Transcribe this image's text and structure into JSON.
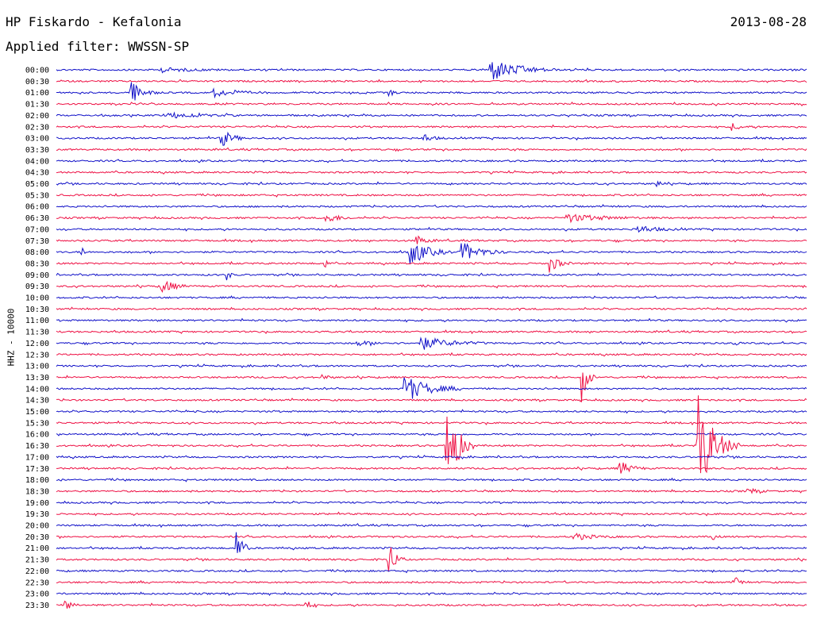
{
  "header": {
    "station": "HP Fiskardo - Kefalonia",
    "date": "2013-08-28",
    "filter": "Applied filter: WWSSN-SP"
  },
  "axis_label": "HHZ - 10000",
  "colors": {
    "even_trace": "#1010c8",
    "odd_trace": "#ee1044"
  },
  "chart_data": {
    "type": "line",
    "trace_labels": [
      "00:00",
      "00:30",
      "01:00",
      "01:30",
      "02:00",
      "02:30",
      "03:00",
      "03:30",
      "04:00",
      "04:30",
      "05:00",
      "05:30",
      "06:00",
      "06:30",
      "07:00",
      "07:30",
      "08:00",
      "08:30",
      "09:00",
      "09:30",
      "10:00",
      "10:30",
      "11:00",
      "11:30",
      "12:00",
      "12:30",
      "13:00",
      "13:30",
      "14:00",
      "14:30",
      "15:00",
      "15:30",
      "16:00",
      "16:30",
      "17:00",
      "17:30",
      "18:00",
      "18:30",
      "19:00",
      "19:30",
      "20:00",
      "20:30",
      "21:00",
      "21:30",
      "22:00",
      "22:30",
      "23:00",
      "23:30"
    ],
    "events": [
      {
        "row": 0,
        "t": 0.578,
        "amp": 1.0,
        "dur": 0.03
      },
      {
        "row": 0,
        "t": 0.14,
        "amp": 0.2,
        "dur": 0.03
      },
      {
        "row": 2,
        "t": 0.1,
        "amp": 1.0,
        "dur": 0.012
      },
      {
        "row": 2,
        "t": 0.21,
        "amp": 0.35,
        "dur": 0.025
      },
      {
        "row": 2,
        "t": 0.443,
        "amp": 0.35,
        "dur": 0.005
      },
      {
        "row": 4,
        "t": 0.15,
        "amp": 0.25,
        "dur": 0.03
      },
      {
        "row": 5,
        "t": 0.9,
        "amp": 0.3,
        "dur": 0.01
      },
      {
        "row": 6,
        "t": 0.22,
        "amp": 0.8,
        "dur": 0.012
      },
      {
        "row": 6,
        "t": 0.49,
        "amp": 0.3,
        "dur": 0.01
      },
      {
        "row": 10,
        "t": 0.8,
        "amp": 0.35,
        "dur": 0.005
      },
      {
        "row": 13,
        "t": 0.36,
        "amp": 0.5,
        "dur": 0.012
      },
      {
        "row": 13,
        "t": 0.68,
        "amp": 0.35,
        "dur": 0.04
      },
      {
        "row": 14,
        "t": 0.77,
        "amp": 0.3,
        "dur": 0.025
      },
      {
        "row": 15,
        "t": 0.48,
        "amp": 0.45,
        "dur": 0.01
      },
      {
        "row": 16,
        "t": 0.47,
        "amp": 1.2,
        "dur": 0.02
      },
      {
        "row": 16,
        "t": 0.54,
        "amp": 0.9,
        "dur": 0.02
      },
      {
        "row": 16,
        "t": 0.035,
        "amp": 0.5,
        "dur": 0.003
      },
      {
        "row": 17,
        "t": 0.655,
        "amp": 1.0,
        "dur": 0.01
      },
      {
        "row": 17,
        "t": 0.358,
        "amp": 0.4,
        "dur": 0.003
      },
      {
        "row": 18,
        "t": 0.228,
        "amp": 0.5,
        "dur": 0.003
      },
      {
        "row": 19,
        "t": 0.14,
        "amp": 0.8,
        "dur": 0.012
      },
      {
        "row": 24,
        "t": 0.485,
        "amp": 0.6,
        "dur": 0.03
      },
      {
        "row": 24,
        "t": 0.4,
        "amp": 0.2,
        "dur": 0.02
      },
      {
        "row": 24,
        "t": 0.9,
        "amp": 0.4,
        "dur": 0.005
      },
      {
        "row": 27,
        "t": 0.7,
        "amp": 2.2,
        "dur": 0.006
      },
      {
        "row": 27,
        "t": 0.355,
        "amp": 0.3,
        "dur": 0.005
      },
      {
        "row": 28,
        "t": 0.465,
        "amp": 1.2,
        "dur": 0.025
      },
      {
        "row": 33,
        "t": 0.52,
        "amp": 4.5,
        "dur": 0.012
      },
      {
        "row": 33,
        "t": 0.855,
        "amp": 4.5,
        "dur": 0.018
      },
      {
        "row": 35,
        "t": 0.75,
        "amp": 0.7,
        "dur": 0.012
      },
      {
        "row": 37,
        "t": 0.92,
        "amp": 0.3,
        "dur": 0.01
      },
      {
        "row": 41,
        "t": 0.69,
        "amp": 0.3,
        "dur": 0.02
      },
      {
        "row": 41,
        "t": 0.874,
        "amp": 0.4,
        "dur": 0.004
      },
      {
        "row": 42,
        "t": 0.24,
        "amp": 1.8,
        "dur": 0.006
      },
      {
        "row": 43,
        "t": 0.442,
        "amp": 1.6,
        "dur": 0.008
      },
      {
        "row": 45,
        "t": 0.905,
        "amp": 0.7,
        "dur": 0.004
      },
      {
        "row": 47,
        "t": 0.012,
        "amp": 0.5,
        "dur": 0.006
      },
      {
        "row": 47,
        "t": 0.333,
        "amp": 0.4,
        "dur": 0.006
      }
    ]
  }
}
